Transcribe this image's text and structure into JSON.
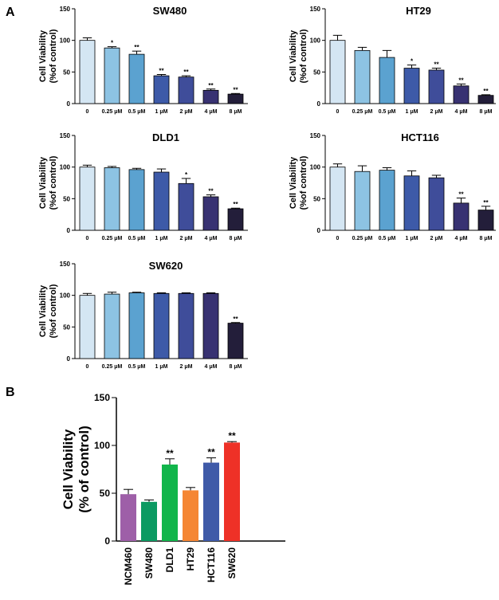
{
  "panel_labels": {
    "a": "A",
    "b": "B"
  },
  "chart_data": [
    {
      "type": "bar",
      "title": "SW480",
      "ylabel_line1": "Cell Viability",
      "ylabel_line2": "(%of control)",
      "ylim": [
        0,
        150
      ],
      "yticks": [
        0,
        50,
        100,
        150
      ],
      "categories": [
        "0",
        "0.25 μM",
        "0.5 μM",
        "1 μM",
        "2 μM",
        "4 μM",
        "8 μM"
      ],
      "values": [
        100,
        88,
        78,
        44,
        42,
        21,
        15
      ],
      "errors": [
        4,
        2,
        5,
        2,
        2,
        2,
        1
      ],
      "significance": [
        "",
        "*",
        "**",
        "**",
        "**",
        "**",
        "**"
      ],
      "colors": [
        "#d4e6f3",
        "#8dc3e3",
        "#5ba2d0",
        "#3d5aa8",
        "#3f4d9a",
        "#383272",
        "#231e3a"
      ]
    },
    {
      "type": "bar",
      "title": "HT29",
      "ylabel_line1": "Cell Viability",
      "ylabel_line2": "(%of control)",
      "ylim": [
        0,
        150
      ],
      "yticks": [
        0,
        50,
        100,
        150
      ],
      "categories": [
        "0",
        "0.25 μM",
        "0.5 μM",
        "1 μM",
        "2 μM",
        "4 μM",
        "8 μM"
      ],
      "values": [
        100,
        84,
        73,
        56,
        53,
        28,
        13
      ],
      "errors": [
        8,
        5,
        11,
        5,
        3,
        3,
        1
      ],
      "significance": [
        "",
        "",
        "",
        "*",
        "**",
        "**",
        "**"
      ],
      "colors": [
        "#d4e6f3",
        "#8dc3e3",
        "#5ba2d0",
        "#3d5aa8",
        "#3f4d9a",
        "#383272",
        "#231e3a"
      ]
    },
    {
      "type": "bar",
      "title": "DLD1",
      "ylabel_line1": "Cell Viability",
      "ylabel_line2": "(%of control)",
      "ylim": [
        0,
        150
      ],
      "yticks": [
        0,
        50,
        100,
        150
      ],
      "categories": [
        "0",
        "0.25 μM",
        "0.5 μM",
        "1 μM",
        "2 μM",
        "4 μM",
        "8 μM"
      ],
      "values": [
        100,
        99,
        96,
        92,
        74,
        53,
        34
      ],
      "errors": [
        3,
        2,
        2,
        5,
        8,
        3,
        1
      ],
      "significance": [
        "",
        "",
        "",
        "",
        "*",
        "**",
        "**"
      ],
      "colors": [
        "#d4e6f3",
        "#8dc3e3",
        "#5ba2d0",
        "#3d5aa8",
        "#3f4d9a",
        "#383272",
        "#231e3a"
      ]
    },
    {
      "type": "bar",
      "title": "HCT116",
      "ylabel_line1": "Cell Viability",
      "ylabel_line2": "(%of control)",
      "ylim": [
        0,
        150
      ],
      "yticks": [
        0,
        50,
        100,
        150
      ],
      "categories": [
        "0",
        "0.25 μM",
        "0.5 μM",
        "1 μM",
        "2 μM",
        "4 μM",
        "8 μM"
      ],
      "values": [
        100,
        93,
        95,
        86,
        83,
        43,
        32
      ],
      "errors": [
        5,
        9,
        4,
        8,
        4,
        8,
        6
      ],
      "significance": [
        "",
        "",
        "",
        "",
        "",
        "**",
        "**"
      ],
      "colors": [
        "#d4e6f3",
        "#8dc3e3",
        "#5ba2d0",
        "#3d5aa8",
        "#3f4d9a",
        "#383272",
        "#231e3a"
      ]
    },
    {
      "type": "bar",
      "title": "SW620",
      "ylabel_line1": "Cell Viability",
      "ylabel_line2": "(%of control)",
      "ylim": [
        0,
        150
      ],
      "yticks": [
        0,
        50,
        100,
        150
      ],
      "categories": [
        "0",
        "0.25 μM",
        "0.5 μM",
        "1 μM",
        "2 μM",
        "4 μM",
        "8 μM"
      ],
      "values": [
        100,
        102,
        104,
        103,
        103,
        103,
        56
      ],
      "errors": [
        3,
        3,
        1,
        1,
        1,
        1,
        1
      ],
      "significance": [
        "",
        "",
        "",
        "",
        "",
        "",
        "**"
      ],
      "colors": [
        "#d4e6f3",
        "#8dc3e3",
        "#5ba2d0",
        "#3d5aa8",
        "#3f4d9a",
        "#383272",
        "#231e3a"
      ]
    },
    {
      "type": "bar",
      "title": "",
      "ylabel_line1": "Cell Viability",
      "ylabel_line2": "(% of control)",
      "ylim": [
        0,
        150
      ],
      "yticks": [
        0,
        50,
        100,
        150
      ],
      "categories": [
        "NCM460",
        "SW480",
        "DLD1",
        "HT29",
        "HCT116",
        "SW620"
      ],
      "values": [
        49,
        41,
        80,
        53,
        82,
        103
      ],
      "errors": [
        5,
        2,
        6,
        3,
        5,
        1
      ],
      "significance": [
        "",
        "",
        "**",
        "",
        "**",
        "**"
      ],
      "colors": [
        "#9e5fa8",
        "#0c9a62",
        "#11b54b",
        "#f58634",
        "#3f5aa8",
        "#ee3127"
      ]
    }
  ]
}
